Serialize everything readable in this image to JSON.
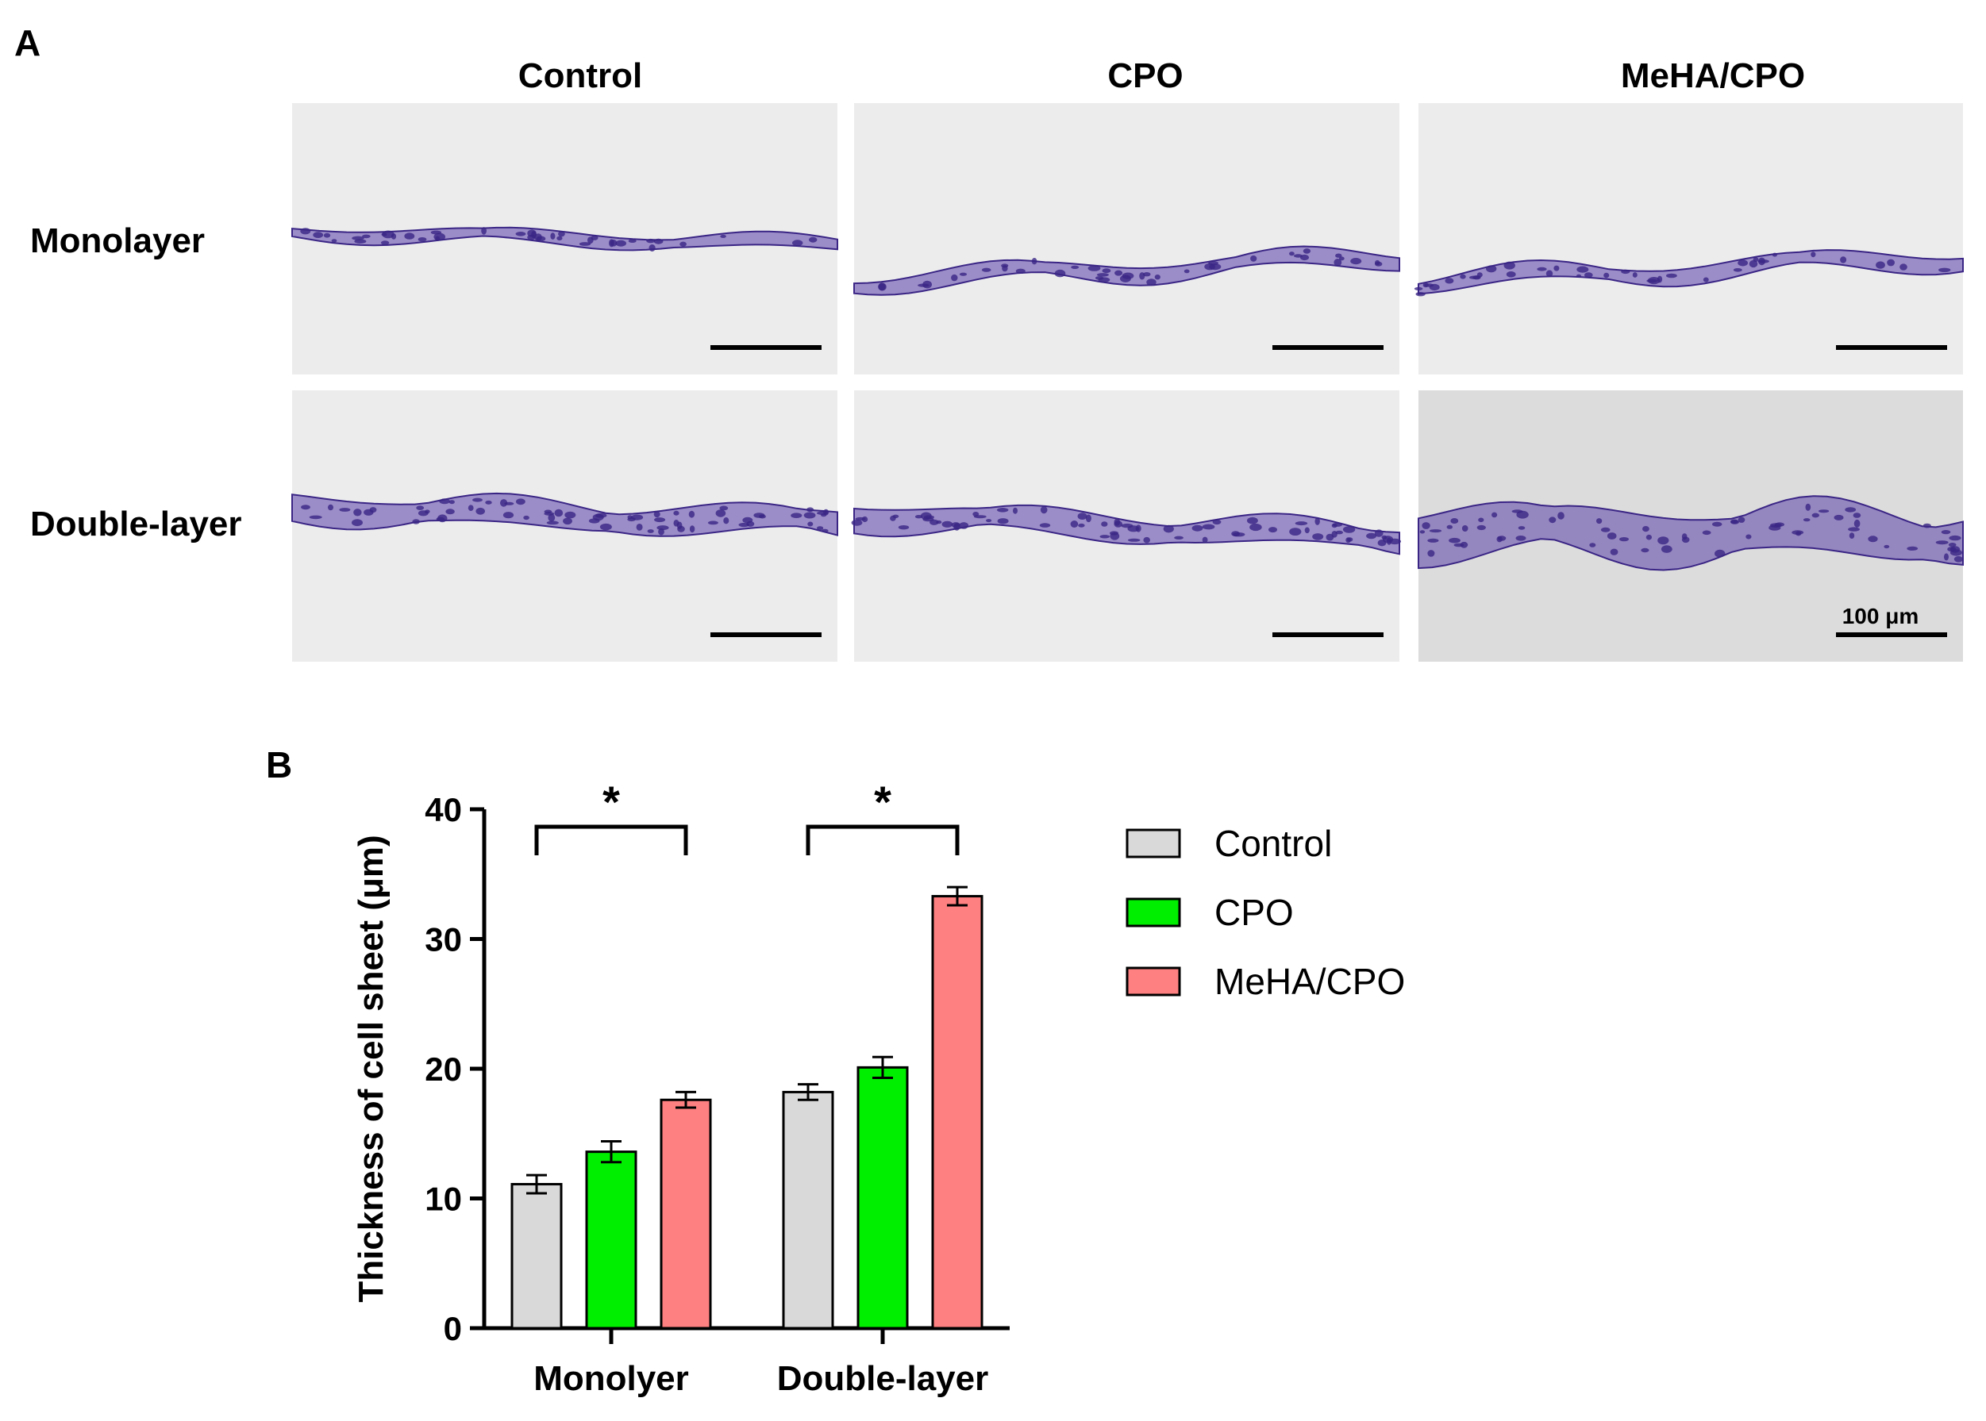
{
  "panel_a": {
    "label": "A",
    "columns": [
      "Control",
      "CPO",
      "MeHA/CPO"
    ],
    "rows": [
      "Monolayer",
      "Double-layer"
    ],
    "scale_bar_label": "100 μm",
    "colors": {
      "stain": "#5a3fa8",
      "stain_dark": "#3a2585",
      "background": "#ececed",
      "background_dark": "#dcdcdc"
    }
  },
  "panel_b": {
    "label": "B"
  },
  "legend": {
    "items": [
      {
        "name": "Control",
        "color": "#d9d9d9"
      },
      {
        "name": "CPO",
        "color": "#00ee00"
      },
      {
        "name": "MeHA/CPO",
        "color": "#ff8080"
      }
    ]
  },
  "chart_data": {
    "type": "bar",
    "title": "",
    "xlabel": "",
    "ylabel": "Thickness of cell sheet (μm)",
    "categories": [
      "Monolyer",
      "Double-layer"
    ],
    "ylim": [
      0,
      40
    ],
    "yticks": [
      0,
      10,
      20,
      30,
      40
    ],
    "series": [
      {
        "name": "Control",
        "values": [
          11.1,
          18.2
        ],
        "errors": [
          0.7,
          0.6
        ]
      },
      {
        "name": "CPO",
        "values": [
          13.6,
          20.1
        ],
        "errors": [
          0.8,
          0.8
        ]
      },
      {
        "name": "MeHA/CPO",
        "values": [
          17.6,
          33.3
        ],
        "errors": [
          0.6,
          0.7
        ]
      }
    ],
    "significance": [
      {
        "category": "Monolyer",
        "from": "Control",
        "to": "MeHA/CPO",
        "label": "*"
      },
      {
        "category": "Double-layer",
        "from": "Control",
        "to": "MeHA/CPO",
        "label": "*"
      }
    ]
  }
}
